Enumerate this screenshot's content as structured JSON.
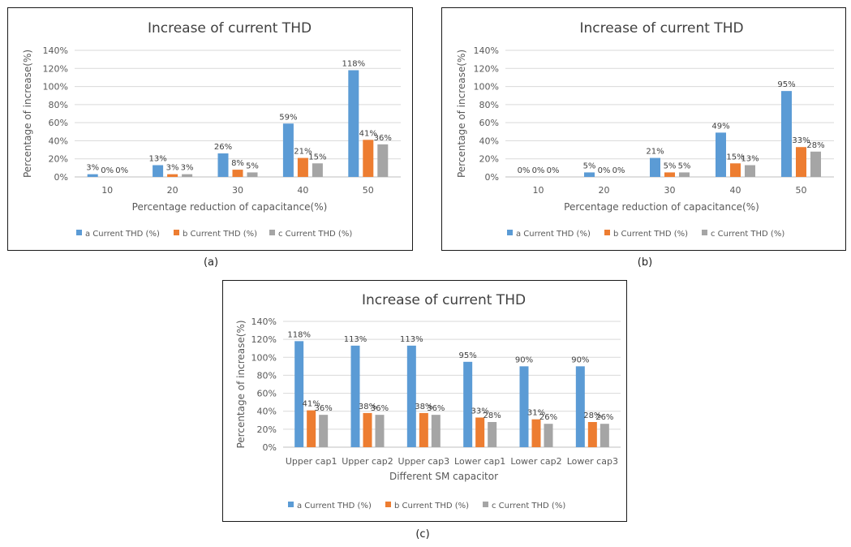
{
  "colors": {
    "a": "#5B9BD5",
    "b": "#ED7D31",
    "c": "#A5A5A5",
    "grid": "#d9d9d9",
    "text": "#595959",
    "title": "#404040"
  },
  "captions": {
    "a": "(a)",
    "b": "(b)",
    "c": "(c)"
  },
  "chart_data": [
    {
      "type": "bar",
      "title": "Increase of current THD",
      "xlabel": "Percentage reduction of capacitance(%)",
      "ylabel": "Percentage of increase(%)",
      "ylim": [
        0,
        140
      ],
      "yticks": [
        "0%",
        "20%",
        "40%",
        "60%",
        "80%",
        "100%",
        "120%",
        "140%"
      ],
      "grid": true,
      "legend": "bottom",
      "categories": [
        "10",
        "20",
        "30",
        "40",
        "50"
      ],
      "series": [
        {
          "name": "a Current THD (%)",
          "values": [
            3,
            13,
            26,
            59,
            118
          ],
          "labels": [
            "3%",
            "13%",
            "26%",
            "59%",
            "118%"
          ]
        },
        {
          "name": "b Current THD (%)",
          "values": [
            0,
            3,
            8,
            21,
            41
          ],
          "labels": [
            "0%",
            "3%",
            "8%",
            "21%",
            "41%"
          ]
        },
        {
          "name": "c Current THD (%)",
          "values": [
            0,
            3,
            5,
            15,
            36
          ],
          "labels": [
            "0%",
            "3%",
            "5%",
            "15%",
            "36%"
          ]
        }
      ]
    },
    {
      "type": "bar",
      "title": "Increase of current THD",
      "xlabel": "Percentage reduction of capacitance(%)",
      "ylabel": "Percentage of increase(%)",
      "ylim": [
        0,
        140
      ],
      "yticks": [
        "0%",
        "20%",
        "40%",
        "60%",
        "80%",
        "100%",
        "120%",
        "140%"
      ],
      "grid": true,
      "legend": "bottom",
      "categories": [
        "10",
        "20",
        "30",
        "40",
        "50"
      ],
      "series": [
        {
          "name": "a Current THD (%)",
          "values": [
            0,
            5,
            21,
            49,
            95
          ],
          "labels": [
            "0%",
            "5%",
            "21%",
            "49%",
            "95%"
          ]
        },
        {
          "name": "b Current THD (%)",
          "values": [
            0,
            0,
            5,
            15,
            33
          ],
          "labels": [
            "0%",
            "0%",
            "5%",
            "15%",
            "33%"
          ]
        },
        {
          "name": "c Current THD (%)",
          "values": [
            0,
            0,
            5,
            13,
            28
          ],
          "labels": [
            "0%",
            "0%",
            "5%",
            "13%",
            "28%"
          ]
        }
      ]
    },
    {
      "type": "bar",
      "title": "Increase of current THD",
      "xlabel": "Different SM capacitor",
      "ylabel": "Percentage of increase(%)",
      "ylim": [
        0,
        140
      ],
      "yticks": [
        "0%",
        "20%",
        "40%",
        "60%",
        "80%",
        "100%",
        "120%",
        "140%"
      ],
      "grid": true,
      "legend": "bottom",
      "categories": [
        "Upper cap1",
        "Upper cap2",
        "Upper cap3",
        "Lower cap1",
        "Lower cap2",
        "Lower cap3"
      ],
      "series": [
        {
          "name": "a Current THD (%)",
          "values": [
            118,
            113,
            113,
            95,
            90,
            90
          ],
          "labels": [
            "118%",
            "113%",
            "113%",
            "95%",
            "90%",
            "90%"
          ]
        },
        {
          "name": "b Current THD (%)",
          "values": [
            41,
            38,
            38,
            33,
            31,
            28
          ],
          "labels": [
            "41%",
            "38%",
            "38%",
            "33%",
            "31%",
            "28%"
          ]
        },
        {
          "name": "c Current THD (%)",
          "values": [
            36,
            36,
            36,
            28,
            26,
            26
          ],
          "labels": [
            "36%",
            "36%",
            "36%",
            "28%",
            "26%",
            "26%"
          ]
        }
      ]
    }
  ]
}
